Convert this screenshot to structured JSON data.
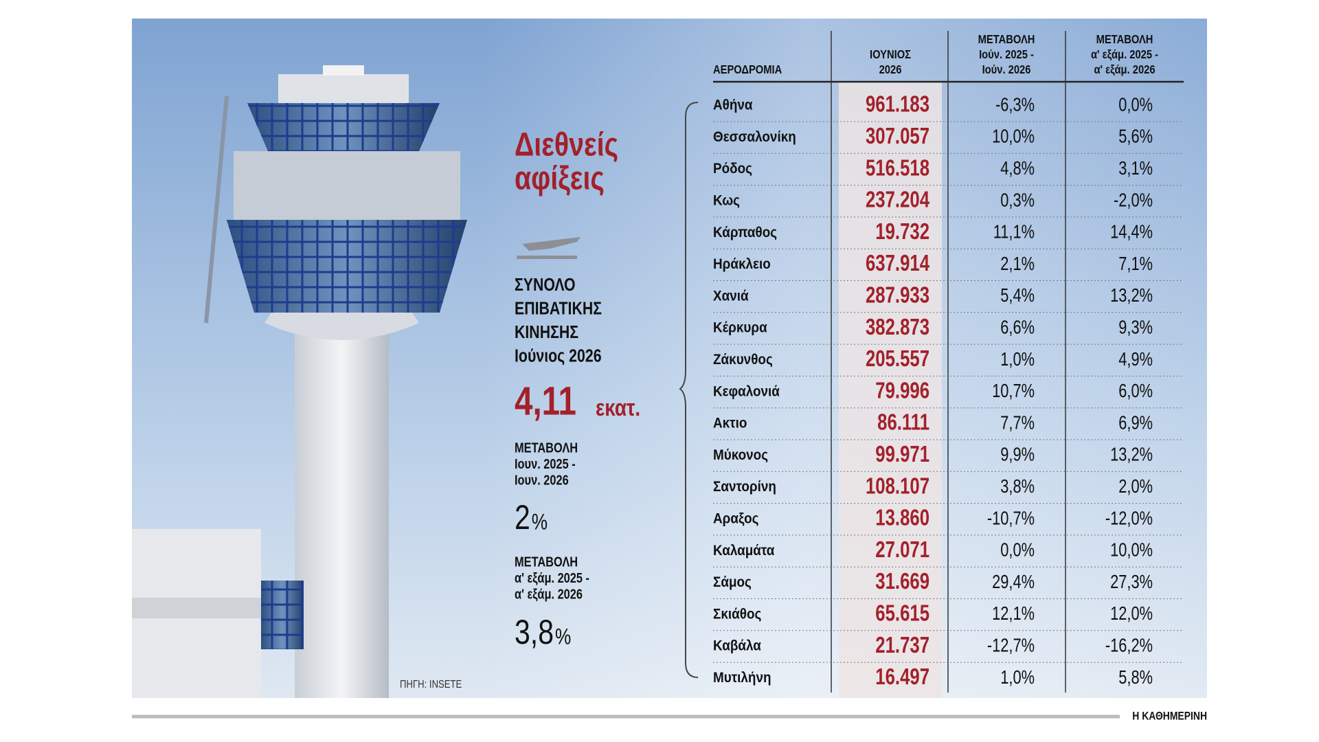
{
  "infographic": {
    "title_lines": [
      "Διεθνείς",
      "αφίξεις"
    ],
    "total_label_lines": [
      "ΣΥΝΟΛΟ",
      "ΕΠΙΒΑΤΙΚΗΣ",
      "ΚΙΝΗΣΗΣ",
      "Ιούνιος 2026"
    ],
    "total_value": "4,11",
    "total_unit": "εκατ.",
    "change_month": {
      "label_lines": [
        "ΜΕΤΑΒΟΛΗ",
        "Ιουν. 2025 -",
        "Ιουν. 2026"
      ],
      "value": "2",
      "unit": "%"
    },
    "change_half": {
      "label_lines": [
        "ΜΕΤΑΒΟΛΗ",
        "α' εξάμ. 2025 -",
        "α' εξάμ. 2026"
      ],
      "value": "3,8",
      "unit": "%"
    },
    "source": "ΠΗΓΗ: INSETE",
    "brand": "Η ΚΑΘΗΜΕΡΙΝΗ"
  },
  "table": {
    "headers": [
      [
        "ΑΕΡΟΔΡΟΜΙΑ"
      ],
      [
        "ΙΟΥΝΙΟΣ",
        "2026"
      ],
      [
        "ΜΕΤΑΒΟΛΗ",
        "Ιούν. 2025 -",
        "Ιούν. 2026"
      ],
      [
        "ΜΕΤΑΒΟΛΗ",
        "α' εξάμ. 2025 -",
        "α' εξάμ. 2026"
      ]
    ],
    "rows": [
      [
        "Αθήνα",
        "961.183",
        "-6,3%",
        "0,0%"
      ],
      [
        "Θεσσαλονίκη",
        "307.057",
        "10,0%",
        "5,6%"
      ],
      [
        "Ρόδος",
        "516.518",
        "4,8%",
        "3,1%"
      ],
      [
        "Κως",
        "237.204",
        "0,3%",
        "-2,0%"
      ],
      [
        "Κάρπαθος",
        "19.732",
        "11,1%",
        "14,4%"
      ],
      [
        "Ηράκλειο",
        "637.914",
        "2,1%",
        "7,1%"
      ],
      [
        "Χανιά",
        "287.933",
        "5,4%",
        "13,2%"
      ],
      [
        "Κέρκυρα",
        "382.873",
        "6,6%",
        "9,3%"
      ],
      [
        "Ζάκυνθος",
        "205.557",
        "1,0%",
        "4,9%"
      ],
      [
        "Κεφαλονιά",
        "79.996",
        "10,7%",
        "6,0%"
      ],
      [
        "Ακτιο",
        "86.111",
        "7,7%",
        "6,9%"
      ],
      [
        "Μύκονος",
        "99.971",
        "9,9%",
        "13,2%"
      ],
      [
        "Σαντορίνη",
        "108.107",
        "3,8%",
        "2,0%"
      ],
      [
        "Αραξος",
        "13.860",
        "-10,7%",
        "-12,0%"
      ],
      [
        "Καλαμάτα",
        "27.071",
        "0,0%",
        "10,0%"
      ],
      [
        "Σάμος",
        "31.669",
        "29,4%",
        "27,3%"
      ],
      [
        "Σκιάθος",
        "65.615",
        "12,1%",
        "12,0%"
      ],
      [
        "Καβάλα",
        "21.737",
        "-12,7%",
        "-16,2%"
      ],
      [
        "Μυτιλήνη",
        "16.497",
        "1,0%",
        "5,8%"
      ]
    ]
  }
}
